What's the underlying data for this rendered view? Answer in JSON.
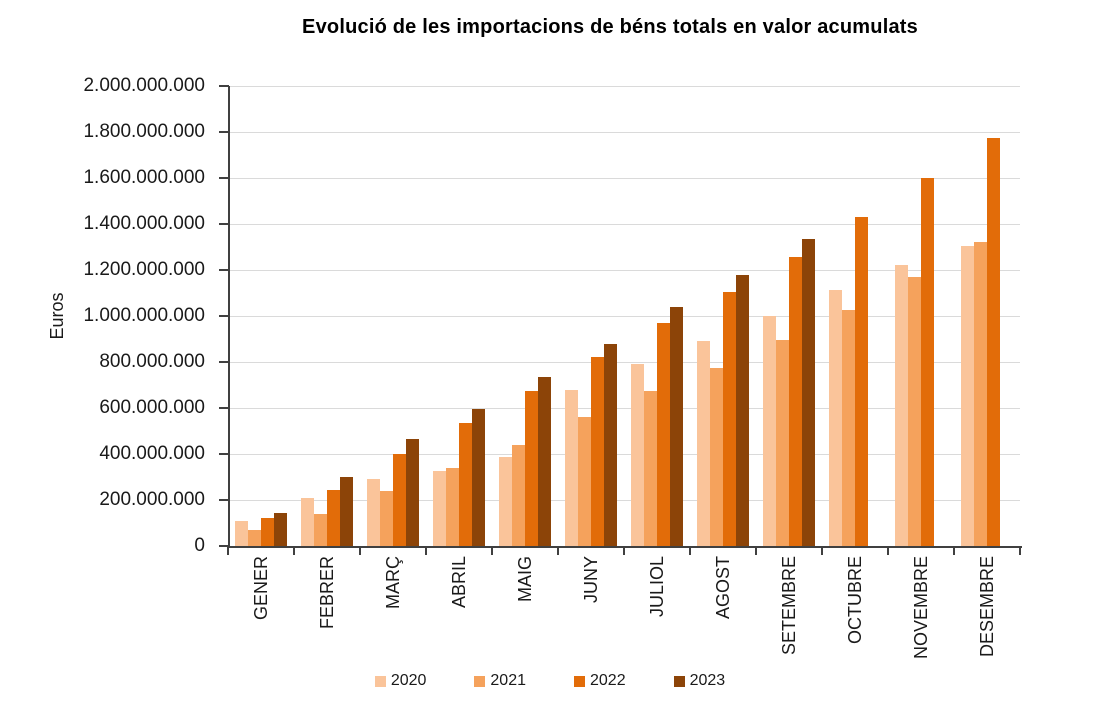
{
  "chart_data": {
    "type": "bar",
    "title": "Evolució de les importacions de béns totals en valor acumulats",
    "xlabel": "",
    "ylabel": "Euros",
    "ylim": [
      0,
      2000000000
    ],
    "y_tick_interval": 200000000,
    "y_ticks_top_to_bottom": [
      "2.000.000.000",
      "1.800.000.000",
      "1.600.000.000",
      "1.400.000.000",
      "1.200.000.000",
      "1.000.000.000",
      "800.000.000",
      "600.000.000",
      "400.000.000",
      "200.000.000",
      "0"
    ],
    "grid": true,
    "legend_position": "bottom",
    "categories": [
      "GENER",
      "FEBRER",
      "MARÇ",
      "ABRIL",
      "MAIG",
      "JUNY",
      "JULIOL",
      "AGOST",
      "SETEMBRE",
      "OCTUBRE",
      "NOVEMBRE",
      "DESEMBRE"
    ],
    "series": [
      {
        "name": "2020",
        "color": "#FAC49A",
        "values": [
          110000000,
          210000000,
          290000000,
          325000000,
          385000000,
          680000000,
          790000000,
          890000000,
          1000000000,
          1115000000,
          1220000000,
          1305000000
        ]
      },
      {
        "name": "2021",
        "color": "#F5A25C",
        "values": [
          70000000,
          140000000,
          240000000,
          340000000,
          440000000,
          560000000,
          675000000,
          775000000,
          895000000,
          1025000000,
          1170000000,
          1320000000
        ]
      },
      {
        "name": "2022",
        "color": "#E26C09",
        "values": [
          120000000,
          245000000,
          400000000,
          535000000,
          675000000,
          820000000,
          970000000,
          1105000000,
          1255000000,
          1430000000,
          1600000000,
          1775000000
        ]
      },
      {
        "name": "2023",
        "color": "#8C4408",
        "values": [
          145000000,
          300000000,
          465000000,
          595000000,
          735000000,
          880000000,
          1040000000,
          1180000000,
          1335000000,
          null,
          null,
          null
        ]
      }
    ]
  }
}
